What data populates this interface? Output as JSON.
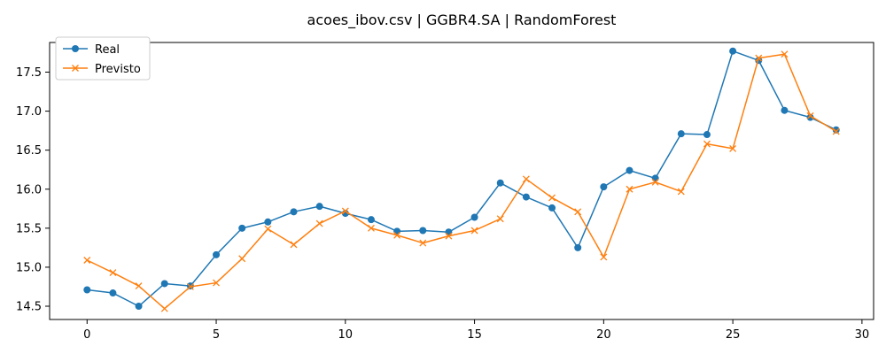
{
  "chart_data": {
    "type": "line",
    "title": "acoes_ibov.csv | GGBR4.SA | RandomForest",
    "xlabel": "",
    "ylabel": "",
    "xlim": [
      -1.45,
      30.45
    ],
    "ylim": [
      14.33,
      17.88
    ],
    "xticks": [
      0,
      5,
      10,
      15,
      20,
      25,
      30
    ],
    "yticks": [
      14.5,
      15.0,
      15.5,
      16.0,
      16.5,
      17.0,
      17.5
    ],
    "grid": false,
    "legend_position": "top-left",
    "x": [
      0,
      1,
      2,
      3,
      4,
      5,
      6,
      7,
      8,
      9,
      10,
      11,
      12,
      13,
      14,
      15,
      16,
      17,
      18,
      19,
      20,
      21,
      22,
      23,
      24,
      25,
      26,
      27,
      28,
      29
    ],
    "series": [
      {
        "name": "Real",
        "color": "#1f77b4",
        "marker": "circle",
        "values": [
          14.71,
          14.67,
          14.5,
          14.79,
          14.76,
          15.16,
          15.5,
          15.58,
          15.71,
          15.78,
          15.69,
          15.61,
          15.46,
          15.47,
          15.45,
          15.64,
          16.08,
          15.9,
          15.76,
          15.25,
          16.03,
          16.24,
          16.14,
          16.71,
          16.7,
          17.77,
          17.65,
          17.01,
          16.92,
          16.76
        ]
      },
      {
        "name": "Previsto",
        "color": "#ff7f0e",
        "marker": "x",
        "values": [
          15.09,
          14.93,
          14.76,
          14.47,
          14.75,
          14.8,
          15.11,
          15.49,
          15.29,
          15.56,
          15.72,
          15.5,
          15.41,
          15.31,
          15.4,
          15.47,
          15.62,
          16.13,
          15.89,
          15.71,
          15.13,
          16.0,
          16.09,
          15.97,
          16.58,
          16.52,
          17.68,
          17.73,
          16.94,
          16.74
        ]
      }
    ]
  }
}
